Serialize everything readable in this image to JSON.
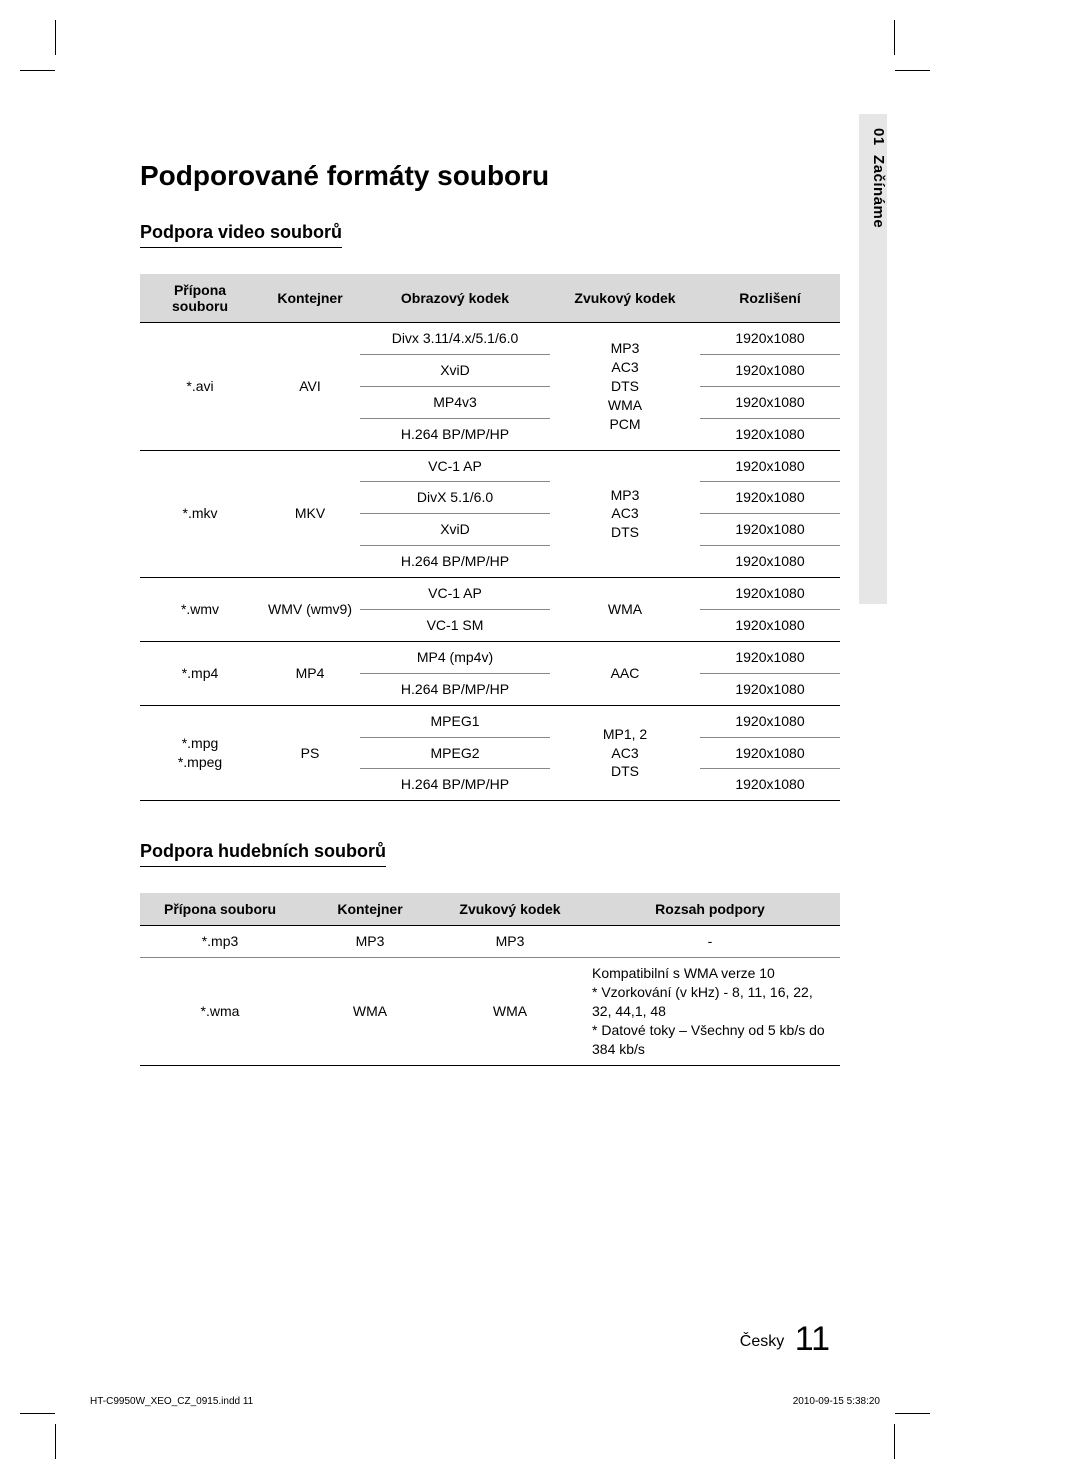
{
  "sideTab": {
    "chapterNumber": "01",
    "chapterTitle": "Začínáme"
  },
  "titles": {
    "main": "Podporované formáty souboru",
    "videoSection": "Podpora video souborů",
    "audioSection": "Podpora hudebních souborů"
  },
  "videoTable": {
    "headers": {
      "ext": "Přípona souboru",
      "container": "Kontejner",
      "vcodec": "Obrazový kodek",
      "acodec": "Zvukový kodek",
      "res": "Rozlišení"
    },
    "colWidths": [
      "120px",
      "100px",
      "190px",
      "150px",
      "140px"
    ],
    "groups": [
      {
        "ext": "*.avi",
        "container": "AVI",
        "audio": "MP3\nAC3\nDTS\nWMA\nPCM",
        "rows": [
          {
            "vcodec": "Divx 3.11/4.x/5.1/6.0",
            "res": "1920x1080"
          },
          {
            "vcodec": "XviD",
            "res": "1920x1080"
          },
          {
            "vcodec": "MP4v3",
            "res": "1920x1080"
          },
          {
            "vcodec": "H.264 BP/MP/HP",
            "res": "1920x1080"
          }
        ]
      },
      {
        "ext": "*.mkv",
        "container": "MKV",
        "audio": "MP3\nAC3\nDTS",
        "rows": [
          {
            "vcodec": "VC-1 AP",
            "res": "1920x1080"
          },
          {
            "vcodec": "DivX 5.1/6.0",
            "res": "1920x1080"
          },
          {
            "vcodec": "XviD",
            "res": "1920x1080"
          },
          {
            "vcodec": "H.264 BP/MP/HP",
            "res": "1920x1080"
          }
        ]
      },
      {
        "ext": "*.wmv",
        "container": "WMV (wmv9)",
        "audio": "WMA",
        "rows": [
          {
            "vcodec": "VC-1 AP",
            "res": "1920x1080"
          },
          {
            "vcodec": "VC-1 SM",
            "res": "1920x1080"
          }
        ]
      },
      {
        "ext": "*.mp4",
        "container": "MP4",
        "audio": "AAC",
        "rows": [
          {
            "vcodec": "MP4 (mp4v)",
            "res": "1920x1080"
          },
          {
            "vcodec": "H.264 BP/MP/HP",
            "res": "1920x1080"
          }
        ]
      },
      {
        "ext": "*.mpg\n*.mpeg",
        "container": "PS",
        "audio": "MP1, 2\nAC3\nDTS",
        "rows": [
          {
            "vcodec": "MPEG1",
            "res": "1920x1080"
          },
          {
            "vcodec": "MPEG2",
            "res": "1920x1080"
          },
          {
            "vcodec": "H.264 BP/MP/HP",
            "res": "1920x1080"
          }
        ]
      }
    ]
  },
  "audioTable": {
    "headers": {
      "ext": "Přípona souboru",
      "container": "Kontejner",
      "acodec": "Zvukový kodek",
      "range": "Rozsah podpory"
    },
    "colWidths": [
      "160px",
      "140px",
      "140px",
      "260px"
    ],
    "rows": [
      {
        "ext": "*.mp3",
        "container": "MP3",
        "acodec": "MP3",
        "range": "-"
      },
      {
        "ext": "*.wma",
        "container": "WMA",
        "acodec": "WMA",
        "range": "Kompatibilní s WMA verze 10\n* Vzorkování (v kHz) - 8, 11, 16, 22, 32, 44,1, 48\n* Datové toky – Všechny od 5 kb/s do 384 kb/s"
      }
    ]
  },
  "footer": {
    "langLabel": "Česky",
    "pageNumber": "11",
    "fileInfo": "HT-C9950W_XEO_CZ_0915.indd   11",
    "timestamp": "2010-09-15    5:38:20"
  },
  "colors": {
    "headerBg": "#d9d9d9",
    "sideTabBg": "#e6e6e6",
    "pageBg": "#ffffff",
    "text": "#000000",
    "thinBorder": "#888888"
  }
}
